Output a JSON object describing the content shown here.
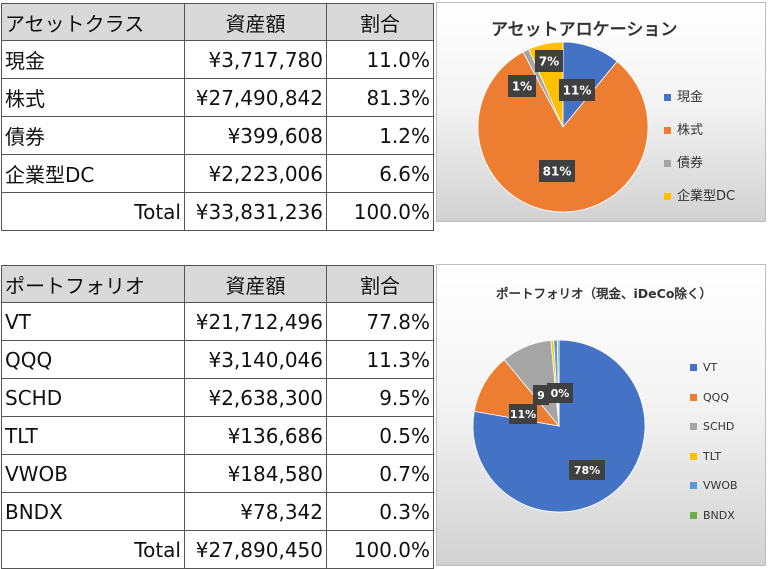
{
  "asset_table": {
    "headers": [
      "アセットクラス",
      "資産額",
      "割合"
    ],
    "rows": [
      [
        "現金",
        "¥3,717,780",
        "11.0%"
      ],
      [
        "株式",
        "¥27,490,842",
        "81.3%"
      ],
      [
        "債券",
        "¥399,608",
        "1.2%"
      ],
      [
        "企業型DC",
        "¥2,223,006",
        "6.6%"
      ]
    ],
    "total": [
      "Total",
      "¥33,831,236",
      "100.0%"
    ]
  },
  "portfolio_table": {
    "headers": [
      "ポートフォリオ",
      "資産額",
      "割合"
    ],
    "rows": [
      [
        "VT",
        "¥21,712,496",
        "77.8%"
      ],
      [
        "QQQ",
        "¥3,140,046",
        "11.3%"
      ],
      [
        "SCHD",
        "¥2,638,300",
        "9.5%"
      ],
      [
        "TLT",
        "¥136,686",
        "0.5%"
      ],
      [
        "VWOB",
        "¥184,580",
        "0.7%"
      ],
      [
        "BNDX",
        "¥78,342",
        "0.3%"
      ]
    ],
    "total": [
      "Total",
      "¥27,890,450",
      "100.0%"
    ]
  },
  "chart_data": [
    {
      "type": "pie",
      "title": "アセットアロケーション",
      "categories": [
        "現金",
        "株式",
        "債券",
        "企業型DC"
      ],
      "values": [
        11.0,
        81.3,
        1.2,
        6.6
      ],
      "data_labels": [
        "11%",
        "81%",
        "1%",
        "7%"
      ],
      "colors": [
        "#4472c4",
        "#ed7d31",
        "#a5a5a5",
        "#ffc000"
      ],
      "legend": "right"
    },
    {
      "type": "pie",
      "title": "ポートフォリオ（現金、iDeCo除く）",
      "categories": [
        "VT",
        "QQQ",
        "SCHD",
        "TLT",
        "VWOB",
        "BNDX"
      ],
      "values": [
        77.8,
        11.3,
        9.5,
        0.5,
        0.7,
        0.3
      ],
      "data_labels": [
        "78%",
        "11%",
        "9",
        "0%",
        "",
        ""
      ],
      "colors": [
        "#4472c4",
        "#ed7d31",
        "#a5a5a5",
        "#ffc000",
        "#5b9bd5",
        "#70ad47"
      ],
      "legend": "right"
    }
  ]
}
